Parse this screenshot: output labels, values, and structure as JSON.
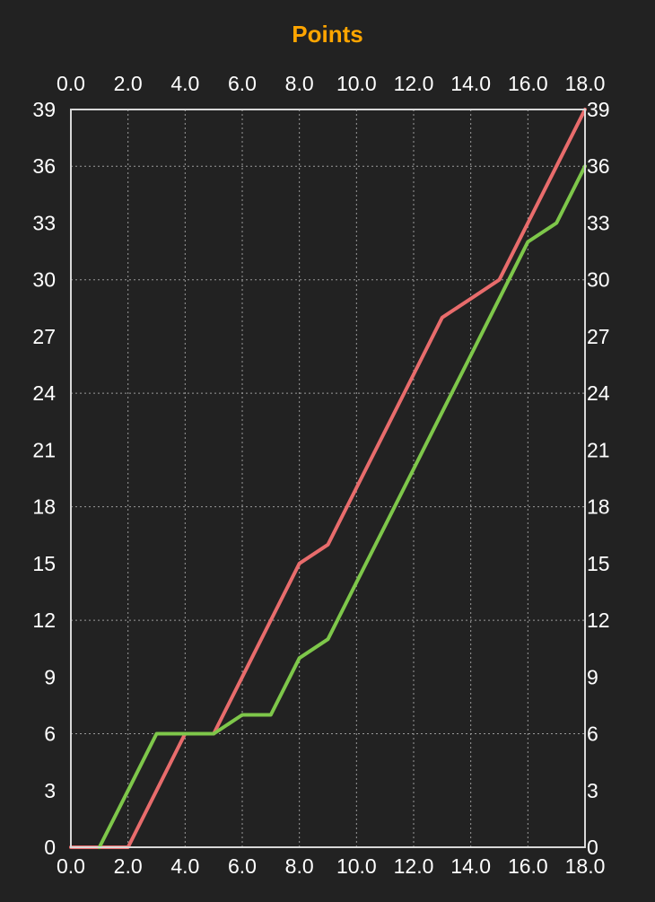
{
  "colors": {
    "background": "#222222",
    "title": "#ffa500",
    "text": "#ffffff",
    "grid": "#9a9a9a",
    "frame": "#d8d8d8"
  },
  "chart_data": {
    "type": "line",
    "title": "Points",
    "xlabel": "",
    "ylabel": "",
    "xlim": [
      0,
      18
    ],
    "ylim": [
      0,
      39
    ],
    "x_ticks": [
      "0.0",
      "2.0",
      "4.0",
      "6.0",
      "8.0",
      "10.0",
      "12.0",
      "14.0",
      "16.0",
      "18.0"
    ],
    "y_ticks": [
      "0",
      "3",
      "6",
      "9",
      "12",
      "15",
      "18",
      "21",
      "24",
      "27",
      "30",
      "33",
      "36",
      "39"
    ],
    "x_tick_values": [
      0,
      2,
      4,
      6,
      8,
      10,
      12,
      14,
      16,
      18
    ],
    "y_tick_values": [
      0,
      3,
      6,
      9,
      12,
      15,
      18,
      21,
      24,
      27,
      30,
      33,
      36,
      39
    ],
    "x_axis_positions": [
      "top",
      "bottom"
    ],
    "y_axis_positions": [
      "left",
      "right"
    ],
    "grid": true,
    "legend": "none",
    "series": [
      {
        "color": "#e86c6c",
        "points": [
          [
            0,
            0
          ],
          [
            1,
            0
          ],
          [
            2,
            0
          ],
          [
            3,
            3
          ],
          [
            4,
            6
          ],
          [
            5,
            6
          ],
          [
            6,
            9
          ],
          [
            7,
            12
          ],
          [
            8,
            15
          ],
          [
            9,
            16
          ],
          [
            10,
            19
          ],
          [
            11,
            22
          ],
          [
            12,
            25
          ],
          [
            13,
            28
          ],
          [
            14,
            29
          ],
          [
            15,
            30
          ],
          [
            16,
            33
          ],
          [
            17,
            36
          ],
          [
            18,
            39
          ]
        ]
      },
      {
        "color": "#7ec74a",
        "points": [
          [
            1,
            0
          ],
          [
            2,
            3
          ],
          [
            3,
            6
          ],
          [
            4,
            6
          ],
          [
            5,
            6
          ],
          [
            6,
            7
          ],
          [
            7,
            7
          ],
          [
            8,
            10
          ],
          [
            9,
            11
          ],
          [
            10,
            14
          ],
          [
            11,
            17
          ],
          [
            12,
            20
          ],
          [
            13,
            23
          ],
          [
            14,
            26
          ],
          [
            15,
            29
          ],
          [
            16,
            32
          ],
          [
            17,
            33
          ],
          [
            18,
            36
          ]
        ]
      }
    ]
  }
}
